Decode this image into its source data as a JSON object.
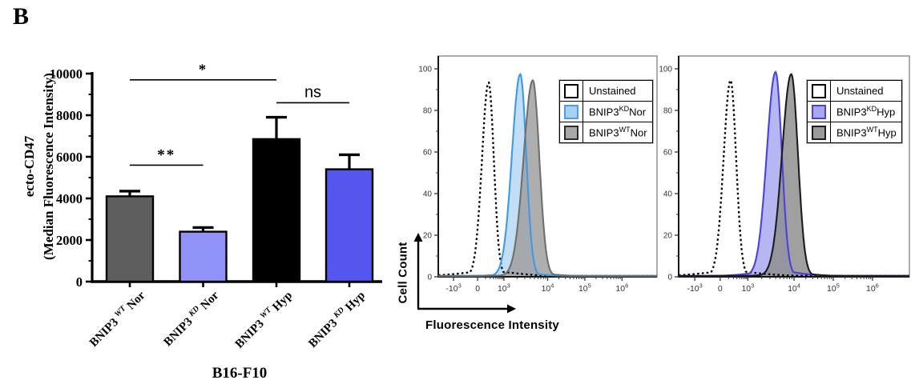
{
  "panel_label": "B",
  "flow_labels": {
    "ylabel": "Cell Count",
    "xlabel": "Fluorescence Intensity"
  },
  "chart_data": [
    {
      "id": "bar-ecto-cd47",
      "type": "bar",
      "ylabel_line1": "ecto-CD47",
      "ylabel_line2": "(Median Fluorescence Intensity)",
      "xlabel": "B16-F10",
      "categories": [
        {
          "base": "BNIP3",
          "sup": "WT",
          "suffix": " Nor",
          "text": "BNIP3 WT Nor"
        },
        {
          "base": "BNIP3",
          "sup": "KD",
          "suffix": " Nor",
          "text": "BNIP3 KD Nor"
        },
        {
          "base": "BNIP3",
          "sup": "WT",
          "suffix": " Hyp",
          "text": "BNIP3 WT Hyp"
        },
        {
          "base": "BNIP3",
          "sup": "KD",
          "suffix": " Hyp",
          "text": "BNIP3 KD Hyp"
        }
      ],
      "values": [
        4100,
        2400,
        6850,
        5400
      ],
      "errors_plus": [
        250,
        200,
        1050,
        700
      ],
      "bar_colors": [
        "#5e5e5e",
        "#9193f8",
        "#000000",
        "#5456ee"
      ],
      "ylim": [
        0,
        10000
      ],
      "yticks": [
        0,
        2000,
        4000,
        6000,
        8000,
        10000
      ],
      "minor_ytick_step": 1000,
      "significance": [
        {
          "label": "**",
          "from": 0,
          "to": 1,
          "line_y": 5600
        },
        {
          "label": "*",
          "from": 0,
          "to": 2,
          "line_y": 9700
        },
        {
          "label": "ns",
          "from": 2,
          "to": 3,
          "line_y": 8600
        }
      ]
    },
    {
      "id": "flow-normoxia",
      "type": "flow-histogram",
      "ylabel": "Cell Count",
      "xlabel": "Fluorescence Intensity",
      "ylim": [
        0,
        100
      ],
      "yticks": [
        0,
        20,
        40,
        60,
        80,
        100
      ],
      "xticks": [
        {
          "label": "-10",
          "exp": "3",
          "u": 0.07
        },
        {
          "label": "0",
          "exp": "",
          "u": 0.18
        },
        {
          "label": "10",
          "exp": "3",
          "u": 0.3
        },
        {
          "label": "10",
          "exp": "4",
          "u": 0.5
        },
        {
          "label": "10",
          "exp": "5",
          "u": 0.67
        },
        {
          "label": "10",
          "exp": "6",
          "u": 0.84
        }
      ],
      "series": [
        {
          "name": "Unstained",
          "peak_u": 0.23,
          "peak_y": 93,
          "sigma_l": 0.03,
          "sigma_r": 0.024,
          "tail_h": 2.2,
          "tail_sigma": 0.115,
          "stroke": "#000000",
          "dash": "2.6 3.2",
          "width": 2.3,
          "fill": "none"
        },
        {
          "name": "BNIP3 KD Nor",
          "peak_u": 0.375,
          "peak_y": 97,
          "sigma_l": 0.038,
          "sigma_r": 0.027,
          "tail_h": 1.6,
          "tail_sigma": 0.075,
          "stroke": "#3d9ae6",
          "width": 2.1,
          "fill": "#b3d6f4",
          "fill_opacity": 0.8
        },
        {
          "name": "BNIP3 WT Nor",
          "peak_u": 0.432,
          "peak_y": 94,
          "sigma_l": 0.042,
          "sigma_r": 0.03,
          "tail_h": 1.5,
          "tail_sigma": 0.075,
          "stroke": "#6f6f6f",
          "width": 2.1,
          "fill": "#a0a0a0",
          "fill_opacity": 0.85
        }
      ],
      "legend": [
        {
          "base": "Unstained",
          "sup": "",
          "suffix": "",
          "swatch_fill": "#ffffff",
          "swatch_border": "#000000"
        },
        {
          "base": "BNIP3",
          "sup": "KD",
          "suffix": "Nor",
          "swatch_fill": "#a8d0f3",
          "swatch_border": "#4a9de8"
        },
        {
          "base": "BNIP3",
          "sup": "WT",
          "suffix": "Nor",
          "swatch_fill": "#a8a8a8",
          "swatch_border": "#2b2b2b"
        }
      ]
    },
    {
      "id": "flow-hypoxia",
      "type": "flow-histogram",
      "ylabel": "Cell Count",
      "xlabel": "Fluorescence Intensity",
      "ylim": [
        0,
        100
      ],
      "yticks": [
        0,
        20,
        40,
        60,
        80,
        100
      ],
      "xticks": [
        {
          "label": "-10",
          "exp": "3",
          "u": 0.07
        },
        {
          "label": "0",
          "exp": "",
          "u": 0.18
        },
        {
          "label": "10",
          "exp": "3",
          "u": 0.3
        },
        {
          "label": "10",
          "exp": "4",
          "u": 0.5
        },
        {
          "label": "10",
          "exp": "5",
          "u": 0.67
        },
        {
          "label": "10",
          "exp": "6",
          "u": 0.84
        }
      ],
      "series": [
        {
          "name": "Unstained",
          "peak_u": 0.225,
          "peak_y": 94,
          "sigma_l": 0.03,
          "sigma_r": 0.024,
          "tail_h": 2.2,
          "tail_sigma": 0.115,
          "stroke": "#000000",
          "dash": "2.6 3.2",
          "width": 2.3,
          "fill": "none"
        },
        {
          "name": "BNIP3 KD Hyp",
          "peak_u": 0.42,
          "peak_y": 98,
          "sigma_l": 0.038,
          "sigma_r": 0.027,
          "tail_h": 2.4,
          "tail_sigma": 0.095,
          "stroke": "#4843dd",
          "width": 2.1,
          "fill": "#a6a6f0",
          "fill_opacity": 0.82
        },
        {
          "name": "BNIP3 WT Hyp",
          "peak_u": 0.488,
          "peak_y": 97,
          "sigma_l": 0.04,
          "sigma_r": 0.029,
          "tail_h": 1.6,
          "tail_sigma": 0.075,
          "stroke": "#1c1c1c",
          "width": 2.1,
          "fill": "#8f8f8f",
          "fill_opacity": 0.85
        }
      ],
      "legend": [
        {
          "base": "Unstained",
          "sup": "",
          "suffix": "",
          "swatch_fill": "#ffffff",
          "swatch_border": "#000000"
        },
        {
          "base": "BNIP3",
          "sup": "KD",
          "suffix": "Hyp",
          "swatch_fill": "#a7a7f2",
          "swatch_border": "#4843dd"
        },
        {
          "base": "BNIP3",
          "sup": "WT",
          "suffix": "Hyp",
          "swatch_fill": "#9a9a9a",
          "swatch_border": "#1c1c1c"
        }
      ]
    }
  ]
}
